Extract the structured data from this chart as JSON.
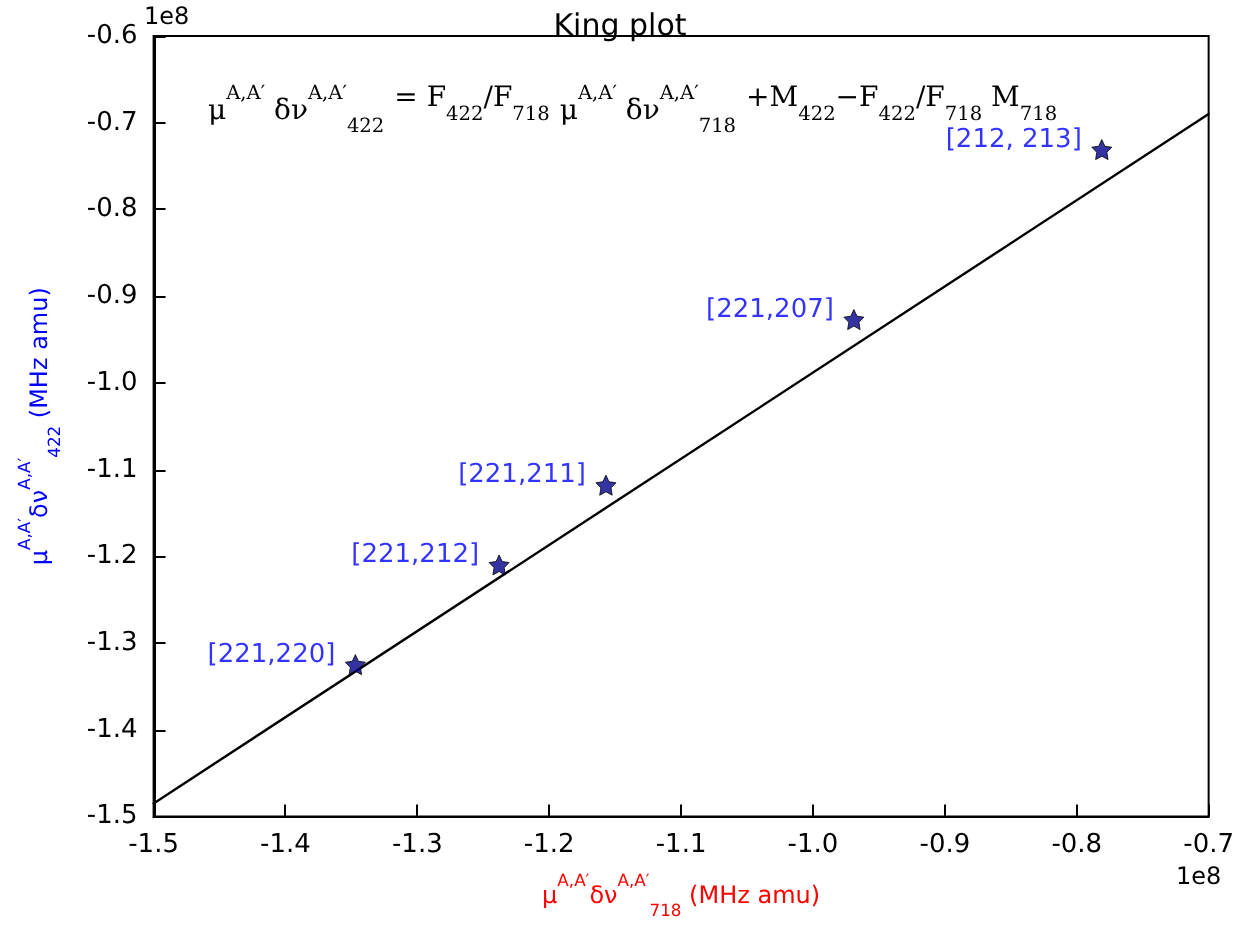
{
  "chart_data": {
    "type": "scatter",
    "title": "King plot",
    "xlabel": "μ$^{A,A′}$δν$^{A,A′}$$_{718}$ (MHz amu)",
    "ylabel": "μ$^{A,A′}$δν$^{A,A′}$$_{422}$ (MHz amu)",
    "annotations": [
      "μ$^{A,A′}$ δν$^{A,A′}$$_{422}$",
      "= F$_{422}$/F$_{718}$",
      "μ$^{A,A′}$ δν$^{A,A′}$$_{718}$",
      "+M$_{422}$−F$_{422}$/F$_{718}$ M$_{718}$",
      "1e8",
      "1e8",
      {
        "text": "[221,220]",
        "x": -1.347,
        "y": -1.325
      },
      {
        "text": "[221,212]",
        "x": -1.238,
        "y": -1.21
      },
      {
        "text": "[221,211]",
        "x": -1.157,
        "y": -1.118
      },
      {
        "text": "[221,207]",
        "x": -0.969,
        "y": -0.927
      },
      {
        "text": "[212, 213]",
        "x": -0.781,
        "y": -0.731
      }
    ],
    "series": [
      {
        "color": "#00008b",
        "marker": "star",
        "x": [
          -1.347,
          -1.238,
          -1.157,
          -0.969,
          -0.781
        ],
        "values": [
          -1.325,
          -1.21,
          -1.118,
          -0.927,
          -0.731
        ]
      },
      {
        "type": "line",
        "color": "#000000",
        "marker": "none",
        "line_style": "solid",
        "x": [
          -1.5,
          -0.7
        ],
        "values": [
          -1.485,
          -0.69
        ]
      }
    ],
    "xlim": [
      -1.5,
      -0.7
    ],
    "xticks": [
      -1.5,
      -1.4,
      -1.3,
      -1.2,
      -1.1,
      {
        "value": -1.0,
        "label": "-1.0"
      },
      -0.9,
      -0.8,
      -0.7
    ],
    "ylim": [
      -1.5,
      -0.6
    ],
    "yticks": [
      -1.5,
      -1.4,
      -1.3,
      -1.2,
      -1.1,
      {
        "value": -1.0,
        "label": "-1.0"
      },
      -0.9,
      -0.8,
      -0.7,
      -0.6
    ],
    "grid": false
  }
}
